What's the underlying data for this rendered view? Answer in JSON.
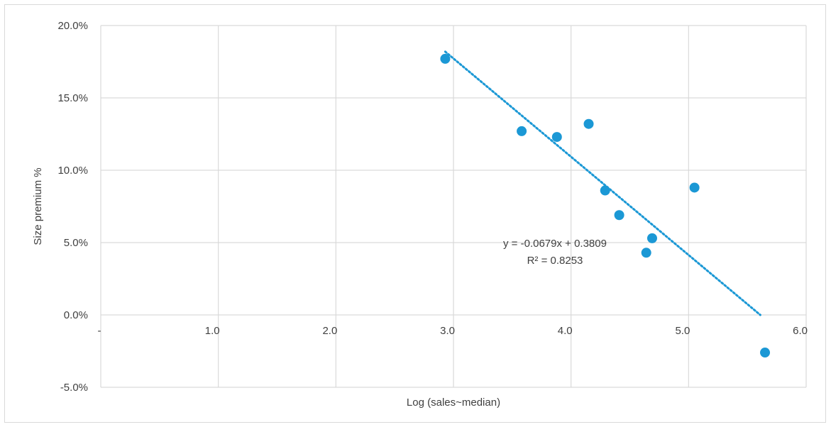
{
  "chart_data": {
    "type": "scatter",
    "xlabel": "Log (sales~median)",
    "ylabel": "Size premium %",
    "xlim": [
      0,
      6
    ],
    "ylim": [
      -0.05,
      0.2
    ],
    "grid": true,
    "x_ticks": [
      {
        "value": 0,
        "label": "-"
      },
      {
        "value": 1,
        "label": "1.0"
      },
      {
        "value": 2,
        "label": "2.0"
      },
      {
        "value": 3,
        "label": "3.0"
      },
      {
        "value": 4,
        "label": "4.0"
      },
      {
        "value": 5,
        "label": "5.0"
      },
      {
        "value": 6,
        "label": "6.0"
      }
    ],
    "y_ticks": [
      {
        "value": -0.05,
        "label": "-5.0%"
      },
      {
        "value": 0.0,
        "label": "0.0%"
      },
      {
        "value": 0.05,
        "label": "5.0%"
      },
      {
        "value": 0.1,
        "label": "10.0%"
      },
      {
        "value": 0.15,
        "label": "15.0%"
      },
      {
        "value": 0.2,
        "label": "20.0%"
      }
    ],
    "points": [
      {
        "x": 2.93,
        "y": 0.177
      },
      {
        "x": 3.58,
        "y": 0.127
      },
      {
        "x": 3.88,
        "y": 0.123
      },
      {
        "x": 4.15,
        "y": 0.132
      },
      {
        "x": 4.29,
        "y": 0.086
      },
      {
        "x": 4.41,
        "y": 0.069
      },
      {
        "x": 4.64,
        "y": 0.043
      },
      {
        "x": 4.69,
        "y": 0.053
      },
      {
        "x": 5.05,
        "y": 0.088
      },
      {
        "x": 5.65,
        "y": -0.026
      }
    ],
    "trendline": {
      "slope": -0.0679,
      "intercept": 0.3809,
      "x_range": [
        2.93,
        5.61
      ],
      "equation": "y = -0.0679x + 0.3809",
      "r_squared": "R² = 0.8253"
    },
    "colors": {
      "marker": "#1b98d5",
      "trendline": "#1b98d5",
      "grid": "#d9d9d9",
      "text": "#404040"
    }
  }
}
